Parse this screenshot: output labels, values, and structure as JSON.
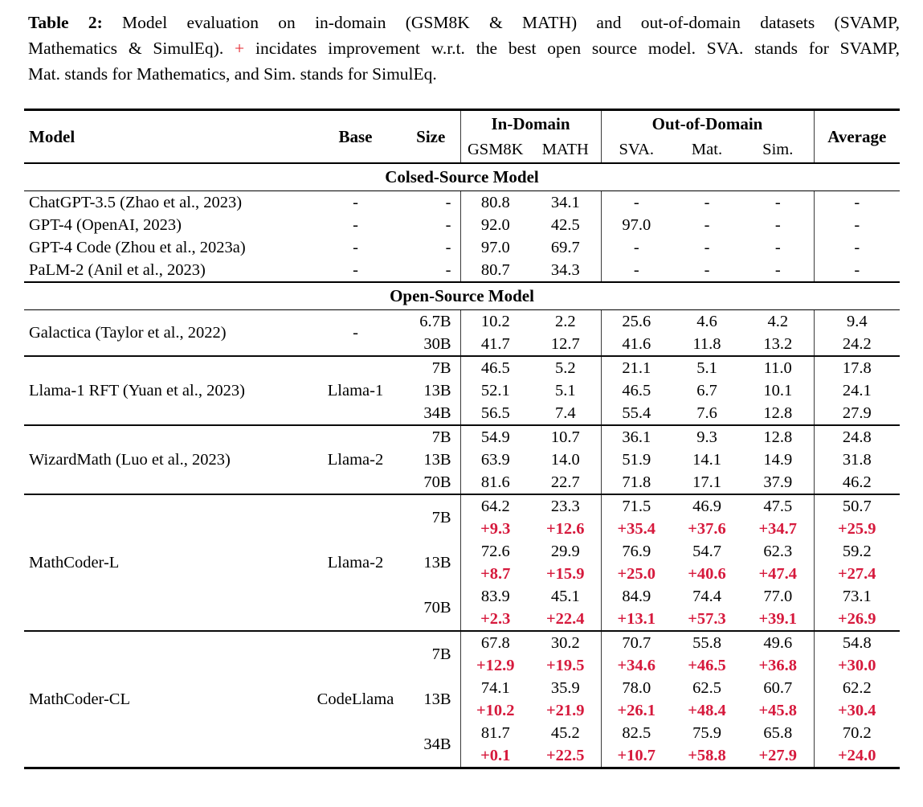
{
  "colors": {
    "background": "#ffffff",
    "text": "#000000",
    "caption_plus_red": "#e5252d",
    "delta_red": "#d6193c",
    "vertical_rule": "#3a3a3a",
    "horizontal_rule": "#000000"
  },
  "caption": {
    "lines": [
      {
        "justify": true,
        "segments": [
          {
            "text": "Table 2:",
            "style": "bold"
          },
          {
            "text": "  Model evaluation on in-domain (GSM8K & MATH) and out-of-domain datasets (SVAMP,",
            "style": ""
          }
        ]
      },
      {
        "justify": true,
        "segments": [
          {
            "text": "Mathematics & SimulEq). ",
            "style": ""
          },
          {
            "text": "+",
            "style": "red"
          },
          {
            "text": " incidates improvement w.r.t. the best open source model. SVA. stands for SVAMP,",
            "style": ""
          }
        ]
      },
      {
        "justify": false,
        "segments": [
          {
            "text": "Mat. stands for Mathematics, and Sim. stands for SimulEq.",
            "style": ""
          }
        ]
      }
    ]
  },
  "table": {
    "header": {
      "model": "Model",
      "base": "Base",
      "size": "Size",
      "in_domain": "In-Domain",
      "out_of_domain": "Out-of-Domain",
      "gsm8k": "GSM8K",
      "math": "MATH",
      "sva": "SVA.",
      "mat": "Mat.",
      "sim": "Sim.",
      "average": "Average"
    },
    "sections": [
      {
        "title": "Colsed-Source Model",
        "separators": false,
        "groups": [
          {
            "model": "ChatGPT-3.5 (Zhao et al., 2023)",
            "base": "-",
            "rows": [
              {
                "size": "-",
                "values": [
                  "80.8",
                  "34.1",
                  "-",
                  "-",
                  "-",
                  "-"
                ]
              }
            ]
          },
          {
            "model": "GPT-4 (OpenAI, 2023)",
            "base": "-",
            "rows": [
              {
                "size": "-",
                "values": [
                  "92.0",
                  "42.5",
                  "97.0",
                  "-",
                  "-",
                  "-"
                ]
              }
            ]
          },
          {
            "model": "GPT-4 Code (Zhou et al., 2023a)",
            "base": "-",
            "rows": [
              {
                "size": "-",
                "values": [
                  "97.0",
                  "69.7",
                  "-",
                  "-",
                  "-",
                  "-"
                ]
              }
            ]
          },
          {
            "model": "PaLM-2 (Anil et al., 2023)",
            "base": "-",
            "rows": [
              {
                "size": "-",
                "values": [
                  "80.7",
                  "34.3",
                  "-",
                  "-",
                  "-",
                  "-"
                ]
              }
            ]
          }
        ]
      },
      {
        "title": "Open-Source Model",
        "separators": true,
        "groups": [
          {
            "model": "Galactica (Taylor et al., 2022)",
            "base": "-",
            "rows": [
              {
                "size": "6.7B",
                "values": [
                  "10.2",
                  "2.2",
                  "25.6",
                  "4.6",
                  "4.2",
                  "9.4"
                ]
              },
              {
                "size": "30B",
                "values": [
                  "41.7",
                  "12.7",
                  "41.6",
                  "11.8",
                  "13.2",
                  "24.2"
                ]
              }
            ]
          },
          {
            "model": "Llama-1 RFT (Yuan et al., 2023)",
            "base": "Llama-1",
            "rows": [
              {
                "size": "7B",
                "values": [
                  "46.5",
                  "5.2",
                  "21.1",
                  "5.1",
                  "11.0",
                  "17.8"
                ]
              },
              {
                "size": "13B",
                "values": [
                  "52.1",
                  "5.1",
                  "46.5",
                  "6.7",
                  "10.1",
                  "24.1"
                ]
              },
              {
                "size": "34B",
                "values": [
                  "56.5",
                  "7.4",
                  "55.4",
                  "7.6",
                  "12.8",
                  "27.9"
                ]
              }
            ]
          },
          {
            "model": "WizardMath (Luo et al., 2023)",
            "base": "Llama-2",
            "rows": [
              {
                "size": "7B",
                "values": [
                  "54.9",
                  "10.7",
                  "36.1",
                  "9.3",
                  "12.8",
                  "24.8"
                ]
              },
              {
                "size": "13B",
                "values": [
                  "63.9",
                  "14.0",
                  "51.9",
                  "14.1",
                  "14.9",
                  "31.8"
                ]
              },
              {
                "size": "70B",
                "values": [
                  "81.6",
                  "22.7",
                  "71.8",
                  "17.1",
                  "37.9",
                  "46.2"
                ]
              }
            ]
          },
          {
            "model": "MathCoder-L",
            "base": "Llama-2",
            "rows": [
              {
                "size": "7B",
                "values": [
                  "64.2",
                  "23.3",
                  "71.5",
                  "46.9",
                  "47.5",
                  "50.7"
                ],
                "delta": [
                  "+9.3",
                  "+12.6",
                  "+35.4",
                  "+37.6",
                  "+34.7",
                  "+25.9"
                ]
              },
              {
                "size": "13B",
                "values": [
                  "72.6",
                  "29.9",
                  "76.9",
                  "54.7",
                  "62.3",
                  "59.2"
                ],
                "delta": [
                  "+8.7",
                  "+15.9",
                  "+25.0",
                  "+40.6",
                  "+47.4",
                  "+27.4"
                ]
              },
              {
                "size": "70B",
                "values": [
                  "83.9",
                  "45.1",
                  "84.9",
                  "74.4",
                  "77.0",
                  "73.1"
                ],
                "delta": [
                  "+2.3",
                  "+22.4",
                  "+13.1",
                  "+57.3",
                  "+39.1",
                  "+26.9"
                ]
              }
            ]
          },
          {
            "model": "MathCoder-CL",
            "base": "CodeLlama",
            "rows": [
              {
                "size": "7B",
                "values": [
                  "67.8",
                  "30.2",
                  "70.7",
                  "55.8",
                  "49.6",
                  "54.8"
                ],
                "delta": [
                  "+12.9",
                  "+19.5",
                  "+34.6",
                  "+46.5",
                  "+36.8",
                  "+30.0"
                ]
              },
              {
                "size": "13B",
                "values": [
                  "74.1",
                  "35.9",
                  "78.0",
                  "62.5",
                  "60.7",
                  "62.2"
                ],
                "delta": [
                  "+10.2",
                  "+21.9",
                  "+26.1",
                  "+48.4",
                  "+45.8",
                  "+30.4"
                ]
              },
              {
                "size": "34B",
                "values": [
                  "81.7",
                  "45.2",
                  "82.5",
                  "75.9",
                  "65.8",
                  "70.2"
                ],
                "delta": [
                  "+0.1",
                  "+22.5",
                  "+10.7",
                  "+58.8",
                  "+27.9",
                  "+24.0"
                ]
              }
            ]
          }
        ]
      }
    ]
  }
}
